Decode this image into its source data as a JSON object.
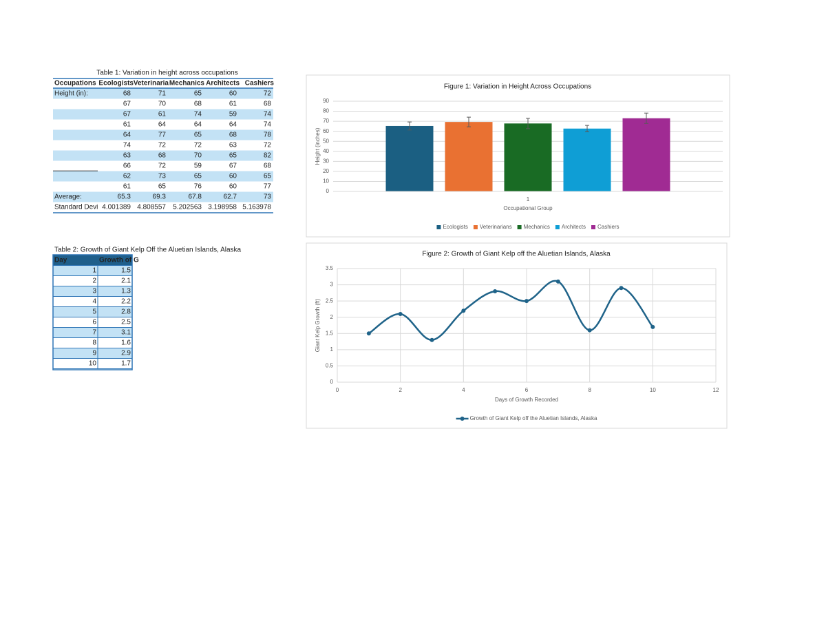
{
  "table1": {
    "title": "Table 1: Variation in height across occupations",
    "header": [
      "Occupations",
      "Ecologists",
      "Veterinaria",
      "Mechanics",
      "Architects",
      "Cashiers"
    ],
    "rows": [
      {
        "label": "Height (in):",
        "values": [
          68,
          71,
          65,
          60,
          72
        ]
      },
      {
        "values": [
          67,
          70,
          68,
          61,
          68
        ]
      },
      {
        "values": [
          67,
          61,
          74,
          59,
          74
        ]
      },
      {
        "values": [
          61,
          64,
          64,
          64,
          74
        ]
      },
      {
        "values": [
          64,
          77,
          65,
          68,
          78
        ]
      },
      {
        "values": [
          74,
          72,
          72,
          63,
          72
        ]
      },
      {
        "values": [
          63,
          68,
          70,
          65,
          82
        ]
      },
      {
        "values": [
          66,
          72,
          59,
          67,
          68
        ]
      },
      {
        "values": [
          62,
          73,
          65,
          60,
          65
        ]
      },
      {
        "values": [
          61,
          65,
          76,
          60,
          77
        ]
      },
      {
        "label": "Average:",
        "values": [
          65.3,
          69.3,
          67.8,
          62.7,
          73
        ]
      },
      {
        "label": "Standard Devi",
        "values": [
          4.001389,
          4.808557,
          5.202563,
          3.198958,
          5.163978
        ]
      }
    ]
  },
  "table2": {
    "title": "Table 2: Growth of Giant Kelp Off the Aluetian Islands, Alaska",
    "header": [
      "Day",
      "Growth of G"
    ],
    "rows": [
      [
        1,
        1.5
      ],
      [
        2,
        2.1
      ],
      [
        3,
        1.3
      ],
      [
        4,
        2.2
      ],
      [
        5,
        2.8
      ],
      [
        6,
        2.5
      ],
      [
        7,
        3.1
      ],
      [
        8,
        1.6
      ],
      [
        9,
        2.9
      ],
      [
        10,
        1.7
      ]
    ]
  },
  "chart_data": [
    {
      "type": "bar",
      "title": "Figure 1: Variation in Height Across Occupations",
      "x_label": "Occupational Group",
      "y_label": "Height (inches)",
      "categories": [
        "1"
      ],
      "series": [
        {
          "name": "Ecologists",
          "color": "#1b5f82",
          "values": [
            65.3
          ],
          "errors": [
            4.001389
          ]
        },
        {
          "name": "Veterinarians",
          "color": "#e97132",
          "values": [
            69.3
          ],
          "errors": [
            4.808557
          ]
        },
        {
          "name": "Mechanics",
          "color": "#196b24",
          "values": [
            67.8
          ],
          "errors": [
            5.202563
          ]
        },
        {
          "name": "Architects",
          "color": "#0f9ed5",
          "values": [
            62.7
          ],
          "errors": [
            3.198958
          ]
        },
        {
          "name": "Cashiers",
          "color": "#a02b93",
          "values": [
            73
          ],
          "errors": [
            5.163978
          ]
        }
      ],
      "ylim": [
        0,
        90
      ],
      "yticks": [
        0,
        10,
        20,
        30,
        40,
        50,
        60,
        70,
        80,
        90
      ],
      "grid": true,
      "legend": "bottom"
    },
    {
      "type": "line",
      "title": "Figure 2: Growth of Giant Kelp off the Aluetian Islands, Alaska",
      "x_label": "Days of Growth Recorded",
      "y_label": "Giant Kelp Growth (ft)",
      "x": [
        1,
        2,
        3,
        4,
        5,
        6,
        7,
        8,
        9,
        10
      ],
      "series": [
        {
          "name": "Growth of Giant Kelp off the Aluetian Islands, Alaska",
          "color": "#1f6389",
          "values": [
            1.5,
            2.1,
            1.3,
            2.2,
            2.8,
            2.5,
            3.1,
            1.6,
            2.9,
            1.7
          ]
        }
      ],
      "xlim": [
        0,
        12
      ],
      "xticks": [
        0,
        2,
        4,
        6,
        8,
        10,
        12
      ],
      "ylim": [
        0,
        3.5
      ],
      "yticks": [
        0,
        0.5,
        1,
        1.5,
        2,
        2.5,
        3,
        3.5
      ],
      "grid": true,
      "smooth": true,
      "legend": "bottom"
    }
  ]
}
